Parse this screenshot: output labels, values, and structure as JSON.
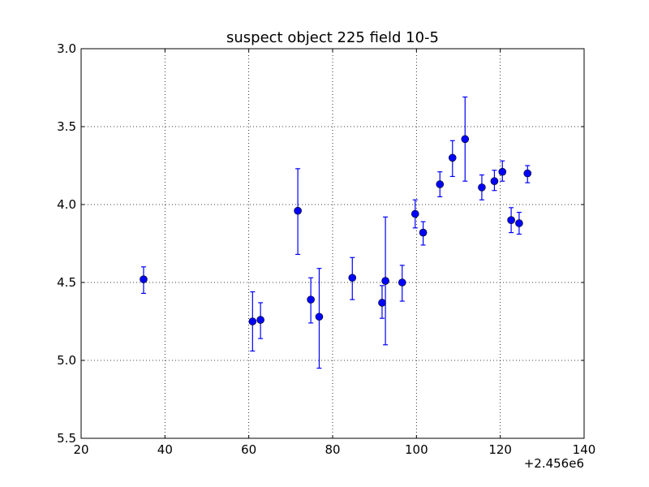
{
  "chart_data": {
    "type": "scatter",
    "title": "suspect object 225 field 10-5",
    "xlabel": "",
    "ylabel": "",
    "x_offset_label": "+2.456e6",
    "xlim": [
      20,
      140
    ],
    "ylim": [
      3.0,
      5.5
    ],
    "y_inverted": true,
    "grid": true,
    "x_ticks": [
      20,
      40,
      60,
      80,
      100,
      120,
      140
    ],
    "x_tick_labels": [
      "20",
      "40",
      "60",
      "80",
      "100",
      "120",
      "140"
    ],
    "y_ticks": [
      3.0,
      3.5,
      4.0,
      4.5,
      5.0,
      5.5
    ],
    "y_tick_labels": [
      "3.0",
      "3.5",
      "4.0",
      "4.5",
      "5.0",
      "5.5"
    ],
    "marker_color": "#0000ff",
    "series": [
      {
        "points": [
          {
            "x": 34.9,
            "y": 4.48,
            "yerr_low": 4.4,
            "yerr_high": 4.57
          },
          {
            "x": 60.9,
            "y": 4.75,
            "yerr_low": 4.56,
            "yerr_high": 4.94
          },
          {
            "x": 62.8,
            "y": 4.74,
            "yerr_low": 4.63,
            "yerr_high": 4.86
          },
          {
            "x": 71.7,
            "y": 4.04,
            "yerr_low": 3.77,
            "yerr_high": 4.32
          },
          {
            "x": 74.8,
            "y": 4.61,
            "yerr_low": 4.47,
            "yerr_high": 4.76
          },
          {
            "x": 76.8,
            "y": 4.72,
            "yerr_low": 4.41,
            "yerr_high": 5.05
          },
          {
            "x": 84.7,
            "y": 4.47,
            "yerr_low": 4.34,
            "yerr_high": 4.61
          },
          {
            "x": 91.8,
            "y": 4.63,
            "yerr_low": 4.52,
            "yerr_high": 4.73
          },
          {
            "x": 92.6,
            "y": 4.49,
            "yerr_low": 4.08,
            "yerr_high": 4.9
          },
          {
            "x": 96.6,
            "y": 4.5,
            "yerr_low": 4.39,
            "yerr_high": 4.62
          },
          {
            "x": 99.7,
            "y": 4.06,
            "yerr_low": 3.97,
            "yerr_high": 4.15
          },
          {
            "x": 101.6,
            "y": 4.18,
            "yerr_low": 4.11,
            "yerr_high": 4.26
          },
          {
            "x": 105.6,
            "y": 3.87,
            "yerr_low": 3.79,
            "yerr_high": 3.95
          },
          {
            "x": 108.6,
            "y": 3.7,
            "yerr_low": 3.59,
            "yerr_high": 3.82
          },
          {
            "x": 111.6,
            "y": 3.58,
            "yerr_low": 3.31,
            "yerr_high": 3.85
          },
          {
            "x": 115.6,
            "y": 3.89,
            "yerr_low": 3.81,
            "yerr_high": 3.97
          },
          {
            "x": 118.6,
            "y": 3.85,
            "yerr_low": 3.78,
            "yerr_high": 3.91
          },
          {
            "x": 120.5,
            "y": 3.79,
            "yerr_low": 3.72,
            "yerr_high": 3.85
          },
          {
            "x": 122.6,
            "y": 4.1,
            "yerr_low": 4.02,
            "yerr_high": 4.18
          },
          {
            "x": 124.5,
            "y": 4.12,
            "yerr_low": 4.05,
            "yerr_high": 4.19
          },
          {
            "x": 126.5,
            "y": 3.8,
            "yerr_low": 3.75,
            "yerr_high": 3.86
          }
        ]
      }
    ]
  }
}
